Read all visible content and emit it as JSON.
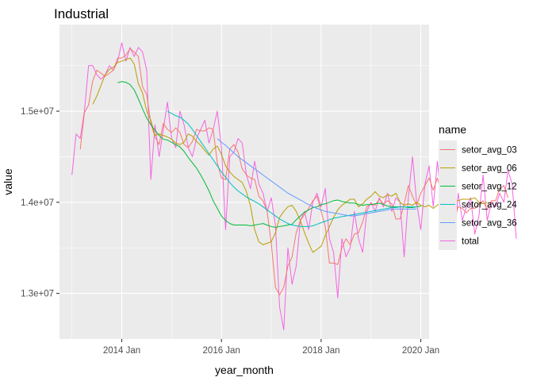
{
  "chart_data": {
    "type": "line",
    "title": "Industrial",
    "xlabel": "year_month",
    "ylabel": "value",
    "x_ticks": [
      "2014 Jan",
      "2016 Jan",
      "2018 Jan",
      "2020 Jan"
    ],
    "y_ticks": [
      "1.3e+07",
      "1.4e+07",
      "1.5e+07"
    ],
    "xlim": [
      "2012-10",
      "2020-03"
    ],
    "ylim": [
      12500000,
      15950000
    ],
    "grid": true,
    "legend": {
      "title": "name",
      "position": "right"
    },
    "colors": {
      "panel_bg": "#ebebeb",
      "grid": "#ffffff",
      "setor_avg_03": "#f8766d",
      "setor_avg_06": "#b79f00",
      "setor_avg_12": "#00ba38",
      "setor_avg_24": "#00bfc4",
      "setor_avg_36": "#619cff",
      "total": "#f564e3"
    },
    "series": [
      {
        "name": "total",
        "start": "2013-01",
        "values": [
          14300000,
          14750000,
          14700000,
          15000000,
          15500000,
          15500000,
          15400000,
          15350000,
          15400000,
          15500000,
          15450000,
          15550000,
          15750000,
          15550000,
          15700000,
          15600000,
          15700000,
          15650000,
          15450000,
          14250000,
          14850000,
          14500000,
          14800000,
          15100000,
          14700000,
          14600000,
          15000000,
          14850000,
          14600000,
          14500000,
          14700000,
          14800000,
          14900000,
          14650000,
          14800000,
          15000000,
          14600000,
          13700000,
          14500000,
          14550000,
          14700000,
          14650000,
          14300000,
          14150000,
          14450000,
          14200000,
          14100000,
          13900000,
          14050000,
          13750000,
          12850000,
          12600000,
          13500000,
          13100000,
          13300000,
          13800000,
          13900000,
          13700000,
          14000000,
          14100000,
          13950000,
          14150000,
          13600000,
          13450000,
          12950000,
          13600000,
          13400000,
          13500000,
          13900000,
          13600000,
          13450000,
          13900000,
          14000000,
          13900000,
          14050000,
          13950000,
          14100000,
          13900000,
          14050000,
          14000000,
          13400000,
          14050000,
          14500000,
          14000000,
          13700000,
          14200000,
          14400000,
          13950000,
          14450000,
          14000000,
          14350000,
          13950000,
          13500000,
          14100000,
          13800000,
          13950000,
          14050000,
          13650000,
          13850000,
          14300000,
          13800000,
          14000000,
          13950000,
          14100000,
          14000000,
          14350000,
          14200000,
          13600000
        ]
      },
      {
        "name": "setor_avg_03",
        "start": "2013-03",
        "values": [
          14580000,
          14983333,
          15066667,
          15333333,
          15450000,
          15416667,
          15383333,
          15416667,
          15450000,
          15583333,
          15583333,
          15616667,
          15683333,
          15650000,
          15600000,
          15266667,
          15183333,
          14866667,
          14716667,
          14633333,
          14866667,
          14800000,
          14766667,
          14816667,
          14766667,
          14633333,
          14600000,
          14666667,
          14800000,
          14783333,
          14783333,
          14816667,
          14800000,
          14433333,
          14266667,
          14250000,
          14583333,
          14633333,
          14550000,
          14366667,
          14300000,
          14266667,
          14250000,
          14066667,
          14016667,
          13900000,
          13550000,
          13066667,
          12983333,
          13066667,
          13300000,
          13400000,
          13666667,
          13800000,
          13866667,
          13933333,
          14016667,
          14066667,
          13900000,
          13733333,
          13333333,
          13333333,
          13316667,
          13500000,
          13600000,
          13533333,
          13650000,
          13666667,
          13783333,
          13950000,
          13983333,
          13966667,
          14033333,
          13983333,
          14016667,
          13983333,
          13816667,
          13816667,
          13983333,
          14183333,
          14066667,
          13966667,
          14100000,
          14183333,
          14266667,
          14133333,
          14266667,
          14100000,
          13933333,
          13850000,
          13800000,
          13950000,
          13933333,
          13883333,
          13933333,
          13933333,
          13983333,
          14016667,
          13916667,
          14016667,
          14016667,
          14150000,
          14183333,
          14050000
        ]
      },
      {
        "name": "setor_avg_06",
        "start": "2013-06",
        "values": [
          15075000,
          15166667,
          15283333,
          15400000,
          15458333,
          15483333,
          15533333,
          15550000,
          15566667,
          15583333,
          15516667,
          15300000,
          15200000,
          15000000,
          14900000,
          14733333,
          14750000,
          14733333,
          14716667,
          14691667,
          14650000,
          14633333,
          14658333,
          14750000,
          14725000,
          14666667,
          14625000,
          14566667,
          14516667,
          14583333,
          14616667,
          14525000,
          14400000,
          14333333,
          14283333,
          14250000,
          14216667,
          14116667,
          13958333,
          13700000,
          13566667,
          13533333,
          13550000,
          13566667,
          13666667,
          13833333,
          13900000,
          13950000,
          13966667,
          13900000,
          13800000,
          13666667,
          13550000,
          13450000,
          13483333,
          13516667,
          13633333,
          13733333,
          13833333,
          13916667,
          13966667,
          14000000,
          14033333,
          14033333,
          13950000,
          13983333,
          14033333,
          14066667,
          14116667,
          14066667,
          14050000,
          14083333,
          14066667,
          14100000,
          14000000,
          13966667,
          13983333,
          13966667,
          14000000,
          13966667,
          13950000,
          13966667,
          13933333,
          13966667,
          14000000,
          14050000,
          14066667,
          14033333,
          14016667,
          14033333,
          14033333,
          14033333,
          14050000,
          14000000,
          13983333,
          14000000
        ]
      },
      {
        "name": "setor_avg_12",
        "start": "2013-12",
        "values": [
          15312500,
          15325000,
          15316667,
          15291667,
          15233333,
          15133333,
          15025000,
          14925000,
          14850000,
          14791667,
          14733333,
          14691667,
          14683333,
          14658333,
          14633333,
          14608333,
          14558333,
          14491667,
          14433333,
          14375000,
          14300000,
          14216667,
          14125000,
          14016667,
          13933333,
          13850000,
          13800000,
          13766667,
          13750000,
          13750000,
          13750000,
          13750000,
          13741667,
          13750000,
          13758333,
          13766667,
          13750000,
          13733333,
          13725000,
          13733333,
          13741667,
          13750000,
          13758333,
          13808333,
          13850000,
          13891667,
          13916667,
          13941667,
          13950000,
          13975000,
          13983333,
          14000000,
          14016667,
          14025000,
          14008333,
          14000000,
          13991667,
          13991667,
          13975000,
          13966667,
          13975000,
          13975000,
          13983333,
          13991667,
          13975000,
          13958333,
          13950000,
          13950000,
          13950000,
          13950000,
          13941667,
          13941667,
          13950000,
          13958333
        ]
      },
      {
        "name": "setor_avg_24",
        "start": "2014-12",
        "values": [
          15000000,
          14975000,
          14950000,
          14933333,
          14900000,
          14858333,
          14800000,
          14733333,
          14666667,
          14600000,
          14533333,
          14466667,
          14400000,
          14333333,
          14275000,
          14216667,
          14166667,
          14125000,
          14091667,
          14058333,
          14033333,
          14008333,
          13983333,
          13950000,
          13916667,
          13883333,
          13850000,
          13816667,
          13791667,
          13766667,
          13750000,
          13741667,
          13733333,
          13733333,
          13733333,
          13741667,
          13758333,
          13775000,
          13791667,
          13808333,
          13825000,
          13833333,
          13841667,
          13850000,
          13858333,
          13866667,
          13875000,
          13883333,
          13891667,
          13900000,
          13908333,
          13916667,
          13925000,
          13933333,
          13941667,
          13941667,
          13950000,
          13950000,
          13950000,
          13950000,
          13950000
        ]
      },
      {
        "name": "setor_avg_36",
        "start": "2015-12",
        "values": [
          14700000,
          14658333,
          14625000,
          14583333,
          14541667,
          14500000,
          14466667,
          14433333,
          14400000,
          14366667,
          14333333,
          14300000,
          14266667,
          14233333,
          14200000,
          14166667,
          14133333,
          14100000,
          14075000,
          14050000,
          14025000,
          14000000,
          13975000,
          13950000,
          13933333,
          13916667,
          13900000,
          13891667,
          13883333,
          13875000,
          13866667,
          13858333,
          13850000,
          13850000,
          13858333,
          13866667,
          13875000,
          13883333,
          13891667,
          13900000,
          13908333,
          13916667,
          13925000,
          13925000,
          13925000,
          13925000,
          13925000,
          13925000,
          13925000
        ]
      }
    ]
  }
}
